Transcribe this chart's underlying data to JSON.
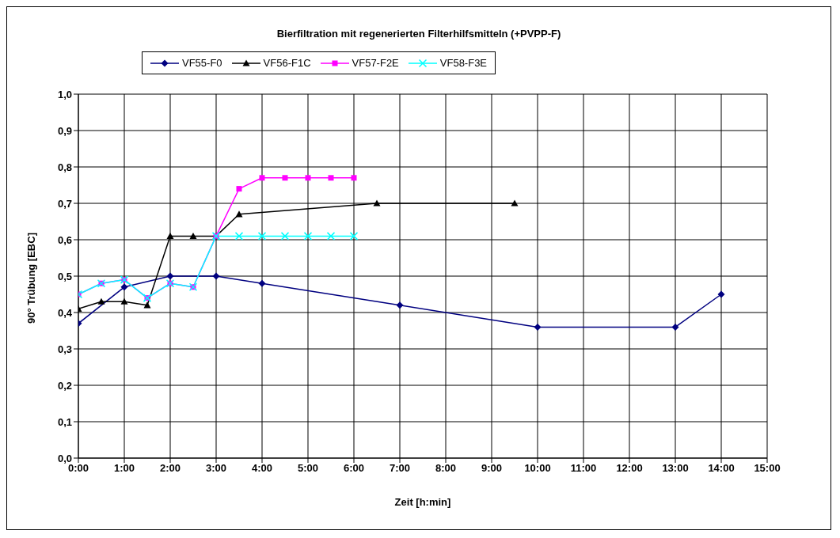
{
  "chart_data": {
    "type": "line",
    "title": "Bierfiltration mit  regenerierten Filterhilfsmitteln (+PVPP-F)",
    "xlabel": "Zeit [h:min]",
    "ylabel": "90° Trübung [EBC]",
    "series": [
      {
        "name": "VF55-F0",
        "color": "#000080",
        "marker": "diamond",
        "x": [
          0,
          1,
          2,
          3,
          4,
          7,
          10,
          13,
          14
        ],
        "values": [
          0.37,
          0.47,
          0.5,
          0.5,
          0.48,
          0.42,
          0.36,
          0.36,
          0.45
        ]
      },
      {
        "name": "VF56-F1C",
        "color": "#000000",
        "marker": "triangle",
        "x": [
          0,
          0.5,
          1,
          1.5,
          2,
          2.5,
          3,
          3.5,
          6.5,
          9.5
        ],
        "values": [
          0.41,
          0.43,
          0.43,
          0.42,
          0.61,
          0.61,
          0.61,
          0.67,
          0.7,
          0.7
        ]
      },
      {
        "name": "VF57-F2E",
        "color": "#ff00ff",
        "marker": "square",
        "x": [
          0,
          0.5,
          1,
          1.5,
          2,
          2.5,
          3,
          3.5,
          4,
          4.5,
          5,
          5.5,
          6
        ],
        "values": [
          0.45,
          0.48,
          0.49,
          0.44,
          0.48,
          0.47,
          0.61,
          0.74,
          0.77,
          0.77,
          0.77,
          0.77,
          0.77
        ]
      },
      {
        "name": "VF58-F3E",
        "color": "#00ffff",
        "marker": "cross",
        "x": [
          0,
          0.5,
          1,
          1.5,
          2,
          2.5,
          3,
          3.5,
          4,
          4.5,
          5,
          5.5,
          6
        ],
        "values": [
          0.45,
          0.48,
          0.49,
          0.44,
          0.48,
          0.47,
          0.61,
          0.61,
          0.61,
          0.61,
          0.61,
          0.61,
          0.61
        ]
      }
    ],
    "xlim": [
      0,
      15
    ],
    "xticks": [
      {
        "value": 0,
        "label": "0:00"
      },
      {
        "value": 1,
        "label": "1:00"
      },
      {
        "value": 2,
        "label": "2:00"
      },
      {
        "value": 3,
        "label": "3:00"
      },
      {
        "value": 4,
        "label": "4:00"
      },
      {
        "value": 5,
        "label": "5:00"
      },
      {
        "value": 6,
        "label": "6:00"
      },
      {
        "value": 7,
        "label": "7:00"
      },
      {
        "value": 8,
        "label": "8:00"
      },
      {
        "value": 9,
        "label": "9:00"
      },
      {
        "value": 10,
        "label": "10:00"
      },
      {
        "value": 11,
        "label": "11:00"
      },
      {
        "value": 12,
        "label": "12:00"
      },
      {
        "value": 13,
        "label": "13:00"
      },
      {
        "value": 14,
        "label": "14:00"
      },
      {
        "value": 15,
        "label": "15:00"
      }
    ],
    "ylim": [
      0,
      1
    ],
    "yticks": [
      {
        "value": 0,
        "label": "0,0"
      },
      {
        "value": 0.1,
        "label": "0,1"
      },
      {
        "value": 0.2,
        "label": "0,2"
      },
      {
        "value": 0.3,
        "label": "0,3"
      },
      {
        "value": 0.4,
        "label": "0,4"
      },
      {
        "value": 0.5,
        "label": "0,5"
      },
      {
        "value": 0.6,
        "label": "0,6"
      },
      {
        "value": 0.7,
        "label": "0,7"
      },
      {
        "value": 0.8,
        "label": "0,8"
      },
      {
        "value": 0.9,
        "label": "0,9"
      },
      {
        "value": 1,
        "label": "1,0"
      }
    ],
    "grid": true,
    "legend": "top",
    "line_style": "solid"
  }
}
